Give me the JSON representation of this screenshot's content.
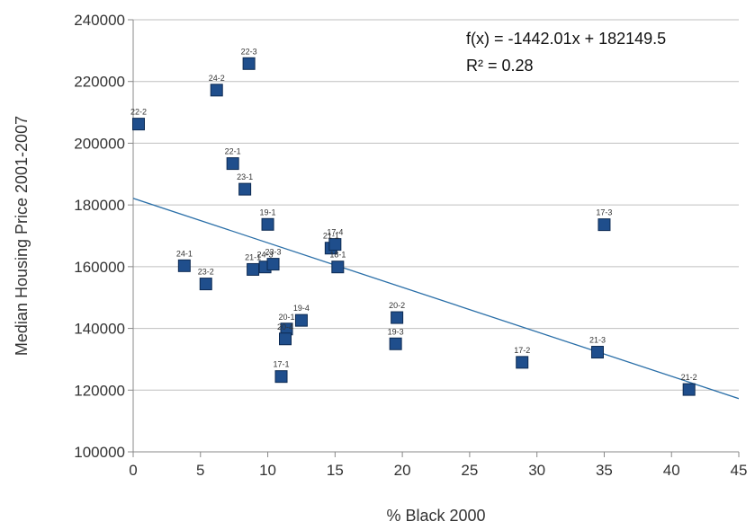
{
  "chart_data": {
    "type": "scatter",
    "xlabel": "% Black 2000",
    "ylabel": "Median Housing Price 2001-2007",
    "xlim": [
      0,
      45
    ],
    "ylim": [
      100000,
      240000
    ],
    "x_ticks": [
      0,
      5,
      10,
      15,
      20,
      25,
      30,
      35,
      40,
      45
    ],
    "y_ticks": [
      100000,
      120000,
      140000,
      160000,
      180000,
      200000,
      220000,
      240000
    ],
    "grid": "horizontal",
    "marker_color": "#1f4e8c",
    "line_color": "#2a6fa8",
    "grid_color": "#bfbfbf",
    "trendline": {
      "slope": -1442.01,
      "intercept": 182149.5,
      "equation": "f(x) = -1442.01x + 182149.5",
      "r_squared": "R² = 0.28"
    },
    "points": [
      {
        "label": "22-2",
        "x": 0.4,
        "y": 206200
      },
      {
        "label": "24-2",
        "x": 6.2,
        "y": 217200
      },
      {
        "label": "22-3",
        "x": 8.6,
        "y": 225800
      },
      {
        "label": "22-1",
        "x": 7.4,
        "y": 193400
      },
      {
        "label": "23-1",
        "x": 8.3,
        "y": 185100
      },
      {
        "label": "19-1",
        "x": 10.0,
        "y": 173700
      },
      {
        "label": "24-1",
        "x": 3.8,
        "y": 160300
      },
      {
        "label": "23-2",
        "x": 5.4,
        "y": 154400
      },
      {
        "label": "21-1",
        "x": 8.9,
        "y": 159100
      },
      {
        "label": "24-3",
        "x": 9.8,
        "y": 159900
      },
      {
        "label": "23-3",
        "x": 10.4,
        "y": 160800
      },
      {
        "label": "21-1",
        "x": 14.7,
        "y": 166000
      },
      {
        "label": "17-4",
        "x": 15.0,
        "y": 167200
      },
      {
        "label": "18-1",
        "x": 15.2,
        "y": 159900
      },
      {
        "label": "19-4",
        "x": 12.5,
        "y": 142600
      },
      {
        "label": "20-1",
        "x": 11.4,
        "y": 139800
      },
      {
        "label": "20-4",
        "x": 11.3,
        "y": 136600
      },
      {
        "label": "17-1",
        "x": 11.0,
        "y": 124400
      },
      {
        "label": "20-2",
        "x": 19.6,
        "y": 143500
      },
      {
        "label": "19-3",
        "x": 19.5,
        "y": 135000
      },
      {
        "label": "17-3",
        "x": 35.0,
        "y": 173600
      },
      {
        "label": "17-2",
        "x": 28.9,
        "y": 129000
      },
      {
        "label": "21-3",
        "x": 34.5,
        "y": 132300
      },
      {
        "label": "21-2",
        "x": 41.3,
        "y": 120200
      }
    ]
  }
}
